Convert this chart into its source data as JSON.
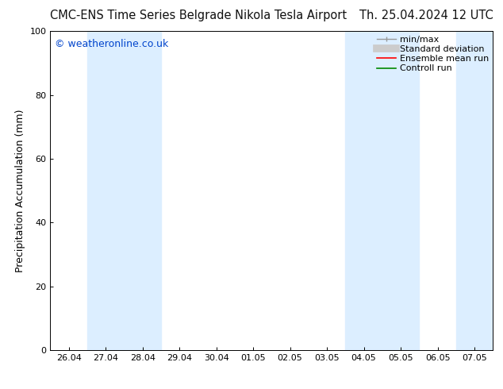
{
  "title_left": "CMC-ENS Time Series Belgrade Nikola Tesla Airport",
  "title_right": "Th. 25.04.2024 12 UTC",
  "ylabel": "Precipitation Accumulation (mm)",
  "watermark": "© weatheronline.co.uk",
  "watermark_color": "#0044cc",
  "ylim": [
    0,
    100
  ],
  "yticks": [
    0,
    20,
    40,
    60,
    80,
    100
  ],
  "xtick_labels": [
    "26.04",
    "27.04",
    "28.04",
    "29.04",
    "30.04",
    "01.05",
    "02.05",
    "03.05",
    "04.05",
    "05.05",
    "06.05",
    "07.05"
  ],
  "shaded_bands": [
    {
      "xstart": 1,
      "xend": 3,
      "color": "#dceeff"
    },
    {
      "xstart": 8,
      "xend": 10,
      "color": "#dceeff"
    },
    {
      "xstart": 11,
      "xend": 12,
      "color": "#dceeff"
    }
  ],
  "legend_labels": [
    "min/max",
    "Standard deviation",
    "Ensemble mean run",
    "Controll run"
  ],
  "legend_colors": [
    "#999999",
    "#cccccc",
    "#ff0000",
    "#008800"
  ],
  "bg_color": "#ffffff",
  "title_fontsize": 10.5,
  "tick_label_fontsize": 8,
  "ylabel_fontsize": 9,
  "legend_fontsize": 8,
  "watermark_fontsize": 9
}
